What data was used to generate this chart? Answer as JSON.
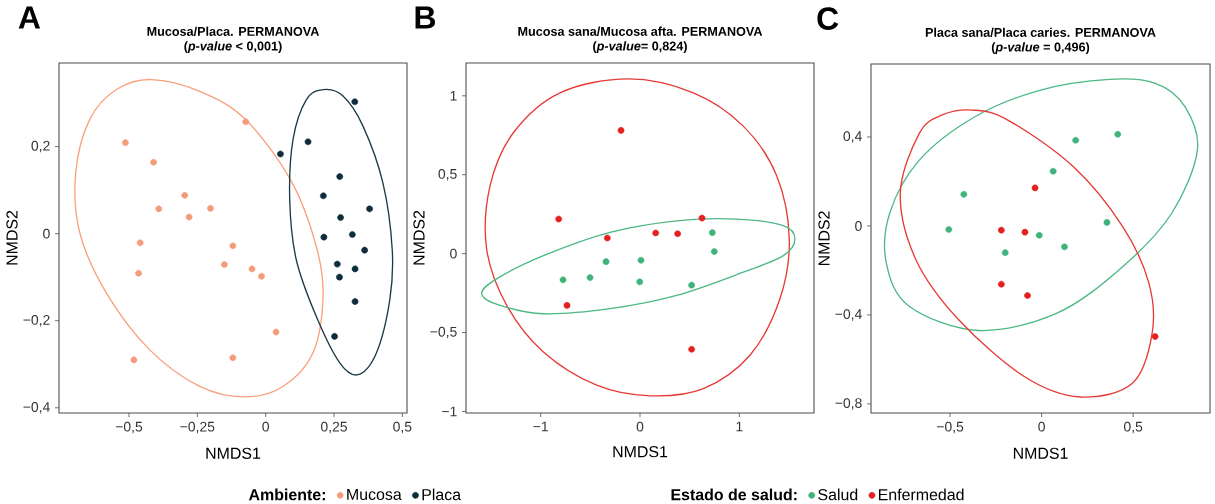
{
  "chart_data": [
    {
      "type": "scatter",
      "title": "Mucosa/Placa. PERMANOVA",
      "subtitle": "(*p-value* < 0,001)",
      "xlabel": "NMDS1",
      "ylabel": "NMDS2",
      "legend_title": "Ambiente:",
      "legend": "bottom",
      "marker": "circle",
      "annotations": [
        "A"
      ],
      "xlim": [
        -0.756,
        0.517
      ],
      "ylim": [
        -0.412,
        0.392
      ],
      "xticks": [
        {
          "value": -0.5,
          "label": "−0,5"
        },
        {
          "value": -0.25,
          "label": "−0,25"
        },
        0,
        {
          "value": 0.25,
          "label": "0,25"
        },
        {
          "value": 0.5,
          "label": "0,5"
        }
      ],
      "yticks": [
        {
          "value": -0.4,
          "label": "−0,4"
        },
        {
          "value": -0.2,
          "label": "−0,2"
        },
        0,
        {
          "value": 0.2,
          "label": "0,2"
        }
      ],
      "series": [
        {
          "name": "Mucosa",
          "color": "#f39c7b",
          "x": [
            -0.513,
            -0.073,
            -0.41,
            -0.296,
            -0.391,
            -0.202,
            -0.28,
            -0.459,
            -0.12,
            -0.465,
            -0.151,
            -0.05,
            -0.015,
            0.038,
            -0.482,
            -0.12
          ],
          "values": [
            0.209,
            0.257,
            0.164,
            0.088,
            0.057,
            0.058,
            0.038,
            -0.021,
            -0.028,
            -0.091,
            -0.071,
            -0.081,
            -0.098,
            -0.226,
            -0.29,
            -0.285
          ]
        },
        {
          "name": "Placa",
          "color": "#0d2d3a",
          "x": [
            0.326,
            0.155,
            0.054,
            0.271,
            0.211,
            0.38,
            0.274,
            0.213,
            0.317,
            0.362,
            0.262,
            0.327,
            0.27,
            0.327,
            0.252
          ],
          "values": [
            0.303,
            0.211,
            0.183,
            0.131,
            0.087,
            0.057,
            0.037,
            -0.008,
            -0.002,
            -0.038,
            -0.07,
            -0.081,
            -0.1,
            -0.156,
            -0.236
          ]
        }
      ]
    },
    {
      "type": "scatter",
      "title": "Mucosa sana/Mucosa afta. PERMANOVA",
      "subtitle": "(*p-value*= 0,824)",
      "xlabel": "NMDS1",
      "ylabel": "NMDS2",
      "legend_title": "Estado de salud:",
      "legend": "bottom",
      "marker": "circle",
      "annotations": [
        "B"
      ],
      "xlim": [
        -1.752,
        1.752
      ],
      "ylim": [
        -1.01,
        1.208
      ],
      "xticks": [
        {
          "value": -1,
          "label": "−1"
        },
        0,
        1
      ],
      "yticks": [
        {
          "value": -1,
          "label": "−1"
        },
        {
          "value": -0.5,
          "label": "−0,5"
        },
        0,
        {
          "value": 0.5,
          "label": "0,5"
        },
        1
      ],
      "series": [
        {
          "name": "Salud",
          "color": "#3fb37b",
          "x": [
            0.728,
            0.748,
            -0.342,
            0.01,
            -0.775,
            -0.503,
            -0.003,
            0.52
          ],
          "values": [
            0.133,
            0.013,
            -0.051,
            -0.042,
            -0.166,
            -0.152,
            -0.179,
            -0.2
          ]
        },
        {
          "name": "Enfermedad",
          "color": "#e3211f",
          "x": [
            -0.191,
            -0.819,
            -0.329,
            0.158,
            0.379,
            0.624,
            -0.735,
            0.52
          ],
          "values": [
            0.781,
            0.219,
            0.099,
            0.131,
            0.126,
            0.225,
            -0.328,
            -0.606
          ]
        }
      ]
    },
    {
      "type": "scatter",
      "title": "Placa sana/Placa caries. PERMANOVA",
      "subtitle": "(*p-value* = 0,496)",
      "xlabel": "NMDS1",
      "ylabel": "NMDS2",
      "marker": "circle",
      "annotations": [
        "C"
      ],
      "xlim": [
        -0.932,
        0.92
      ],
      "ylim": [
        -0.841,
        0.728
      ],
      "xticks": [
        {
          "value": -0.5,
          "label": "−0,5"
        },
        0,
        {
          "value": 0.5,
          "label": "0,5"
        }
      ],
      "yticks": [
        {
          "value": -0.8,
          "label": "−0,8"
        },
        {
          "value": -0.4,
          "label": "−0,4"
        },
        0,
        {
          "value": 0.4,
          "label": "0,4"
        }
      ],
      "series": [
        {
          "color": "#3fb37b",
          "x": [
            0.416,
            0.186,
            0.063,
            -0.425,
            -0.507,
            0.357,
            -0.013,
            0.125,
            -0.199
          ],
          "values": [
            0.412,
            0.385,
            0.246,
            0.142,
            -0.016,
            0.016,
            -0.042,
            -0.094,
            -0.12
          ]
        },
        {
          "color": "#e3211f",
          "x": [
            -0.036,
            -0.22,
            -0.091,
            -0.22,
            -0.077,
            0.62
          ],
          "values": [
            0.171,
            -0.019,
            -0.028,
            -0.262,
            -0.313,
            -0.497
          ]
        }
      ]
    }
  ]
}
